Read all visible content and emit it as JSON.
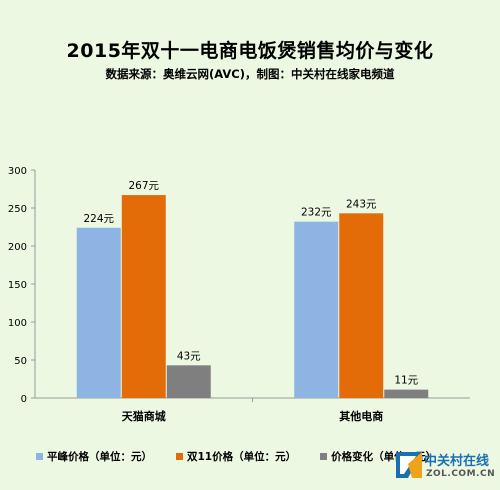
{
  "title": "2015年双十一电商电饭煲销售均价与变化",
  "subtitle": "数据来源：奥维云网(AVC)，制图：中关村在线家电频道",
  "chart_data": {
    "type": "bar",
    "categories": [
      "天猫商城",
      "其他电商"
    ],
    "series": [
      {
        "name": "平峰价格（单位：元）",
        "values": [
          224,
          232
        ],
        "labels": [
          "224元",
          "232元"
        ],
        "color": "#8eb4e3"
      },
      {
        "name": "双11价格（单位：元）",
        "values": [
          267,
          243
        ],
        "labels": [
          "267元",
          "243元"
        ],
        "color": "#e36c09"
      },
      {
        "name": "价格变化（单位：元）",
        "values": [
          43,
          11
        ],
        "labels": [
          "43元",
          "11元"
        ],
        "color": "#7f7f7f"
      }
    ],
    "ylim": [
      0,
      300
    ],
    "yticks": [
      "0",
      "50",
      "100",
      "150",
      "200",
      "250",
      "300"
    ],
    "grid": false,
    "legend": "bottom"
  },
  "watermark": {
    "name": "中关村在线",
    "url": "ZOL.COM.CN"
  }
}
